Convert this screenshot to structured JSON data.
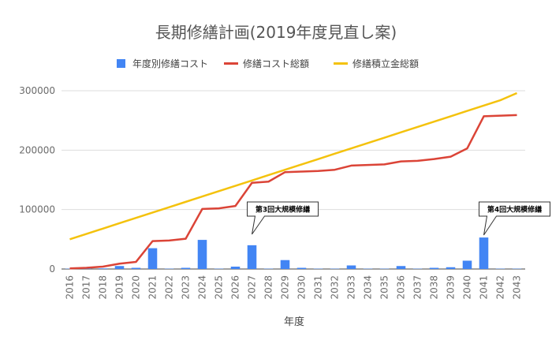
{
  "chart_data": {
    "type": "bar+line",
    "title": "長期修繕計画(2019年度見直し案)",
    "xlabel": "年度",
    "ylabel": "",
    "ylim": [
      0,
      300000
    ],
    "y_ticks": [
      "0",
      "100000",
      "200000",
      "300000"
    ],
    "grid": true,
    "legend_position": "top",
    "categories": [
      "2016",
      "2017",
      "2018",
      "2019",
      "2020",
      "2021",
      "2022",
      "2023",
      "2024",
      "2025",
      "2026",
      "2027",
      "2028",
      "2029",
      "2030",
      "2031",
      "2032",
      "2033",
      "2034",
      "2035",
      "2036",
      "2037",
      "2038",
      "2039",
      "2040",
      "2041",
      "2042",
      "2043"
    ],
    "series": [
      {
        "name": "年度別修繕コスト",
        "type": "bar",
        "color": "#4285f4",
        "values": [
          500,
          800,
          1000,
          5000,
          2000,
          35000,
          500,
          2000,
          49000,
          500,
          4000,
          40000,
          500,
          15000,
          2000,
          500,
          500,
          6000,
          500,
          500,
          5000,
          500,
          2000,
          3000,
          14000,
          53000,
          500,
          500
        ]
      },
      {
        "name": "修繕コスト総額",
        "type": "line",
        "color": "#db4437",
        "values": [
          1000,
          2000,
          4000,
          9000,
          12000,
          47000,
          48000,
          51000,
          101000,
          102000,
          106000,
          145000,
          147000,
          163000,
          164000,
          165000,
          167000,
          174000,
          175000,
          176000,
          181000,
          182000,
          185000,
          189000,
          203000,
          257000,
          258000,
          259000
        ]
      },
      {
        "name": "修繕積立金総額",
        "type": "line",
        "color": "#f4c20d",
        "values": [
          50000,
          59000,
          68000,
          77000,
          86000,
          95000,
          104000,
          113000,
          122000,
          131000,
          140000,
          149000,
          158000,
          167000,
          176000,
          185000,
          194000,
          203000,
          212000,
          221000,
          230000,
          239000,
          248000,
          257000,
          266000,
          275000,
          284000,
          296000
        ]
      }
    ],
    "annotations": [
      {
        "text": "第3回大規模修繕",
        "category": "2027"
      },
      {
        "text": "第4回大規模修繕",
        "category": "2041"
      }
    ]
  }
}
